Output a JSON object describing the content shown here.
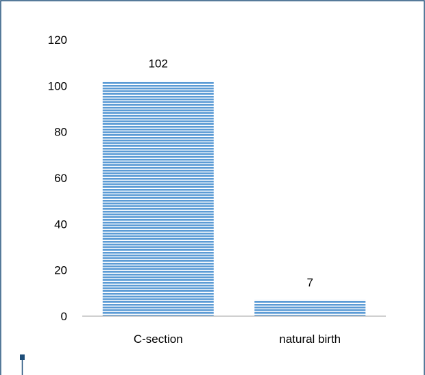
{
  "chart_data": {
    "type": "bar",
    "categories": [
      "C-section",
      "natural birth"
    ],
    "values": [
      102,
      7
    ],
    "data_labels": [
      "102",
      "7"
    ],
    "y_ticks": [
      "0",
      "20",
      "40",
      "60",
      "80",
      "100",
      "120"
    ],
    "ylim": [
      0,
      120
    ],
    "title": "",
    "xlabel": "",
    "ylabel": "",
    "grid": false,
    "legend": "none",
    "bar_color": "#5b9bd5",
    "bar_pattern": "horizontal-stripes"
  },
  "colors": {
    "frame_border": "#1f4e79",
    "axis_line": "#bfbfbf",
    "bar_stripe": "#5b9bd5",
    "bar_stripe_light": "#ffffff"
  }
}
